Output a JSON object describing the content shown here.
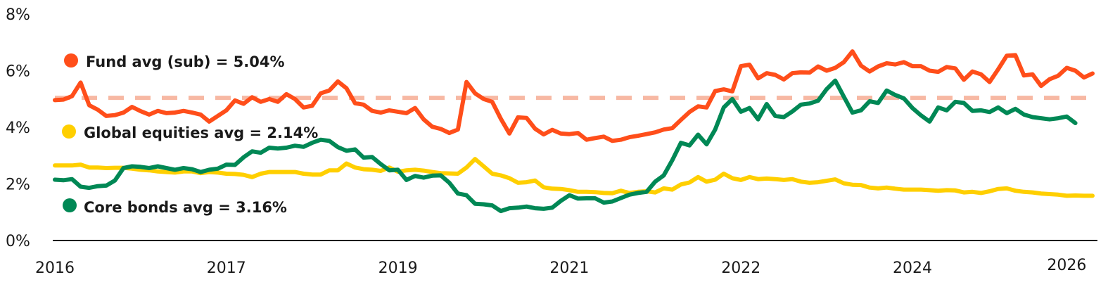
{
  "chart_data": {
    "type": "line",
    "title": "",
    "xlabel": "",
    "ylabel": "",
    "ylim": [
      0,
      8
    ],
    "y_ticks": [
      {
        "value": 0,
        "label": "0%"
      },
      {
        "value": 2,
        "label": "2%"
      },
      {
        "value": 4,
        "label": "4%"
      },
      {
        "value": 6,
        "label": "6%"
      },
      {
        "value": 8,
        "label": "8%"
      }
    ],
    "x_ticks": [
      {
        "index": 0,
        "label": "2016"
      },
      {
        "index": 20,
        "label": "2017"
      },
      {
        "index": 40,
        "label": "2019"
      },
      {
        "index": 60,
        "label": "2021"
      },
      {
        "index": 80,
        "label": "2022"
      },
      {
        "index": 100,
        "label": "2024"
      },
      {
        "index": 118,
        "label": "2026"
      }
    ],
    "reference_line": {
      "name": "Fund avg (sub)",
      "value": 5.04,
      "color": "#f7b8a3",
      "style": "dashed"
    },
    "series": [
      {
        "name": "Fund",
        "color": "#ff4e1a",
        "values": [
          4.96,
          4.98,
          5.1,
          5.58,
          4.78,
          4.62,
          4.4,
          4.43,
          4.52,
          4.72,
          4.57,
          4.45,
          4.58,
          4.5,
          4.52,
          4.58,
          4.52,
          4.45,
          4.2,
          4.4,
          4.6,
          4.95,
          4.83,
          5.06,
          4.9,
          5.0,
          4.9,
          5.17,
          5.0,
          4.7,
          4.76,
          5.2,
          5.3,
          5.62,
          5.38,
          4.85,
          4.8,
          4.58,
          4.52,
          4.6,
          4.55,
          4.5,
          4.68,
          4.28,
          4.02,
          3.94,
          3.8,
          3.92,
          5.6,
          5.2,
          5.0,
          4.9,
          4.3,
          3.78,
          4.35,
          4.33,
          3.95,
          3.75,
          3.91,
          3.78,
          3.76,
          3.8,
          3.56,
          3.62,
          3.67,
          3.52,
          3.56,
          3.65,
          3.7,
          3.76,
          3.82,
          3.92,
          3.97,
          4.26,
          4.54,
          4.74,
          4.7,
          5.28,
          5.34,
          5.27,
          6.16,
          6.21,
          5.73,
          5.91,
          5.85,
          5.69,
          5.91,
          5.94,
          5.93,
          6.15,
          6.0,
          6.1,
          6.3,
          6.68,
          6.18,
          5.97,
          6.15,
          6.26,
          6.22,
          6.3,
          6.16,
          6.16,
          6.0,
          5.96,
          6.13,
          6.08,
          5.68,
          5.97,
          5.87,
          5.6,
          6.05,
          6.53,
          6.55,
          5.83,
          5.87,
          5.46,
          5.7,
          5.82,
          6.1,
          6.0,
          5.76,
          5.9
        ]
      },
      {
        "name": "Global equities",
        "color": "#ffcf00",
        "values": [
          2.65,
          2.65,
          2.65,
          2.68,
          2.58,
          2.58,
          2.56,
          2.57,
          2.57,
          2.54,
          2.5,
          2.48,
          2.44,
          2.42,
          2.4,
          2.44,
          2.44,
          2.38,
          2.42,
          2.4,
          2.36,
          2.35,
          2.32,
          2.24,
          2.36,
          2.42,
          2.42,
          2.42,
          2.42,
          2.36,
          2.33,
          2.33,
          2.48,
          2.48,
          2.72,
          2.58,
          2.52,
          2.5,
          2.46,
          2.58,
          2.43,
          2.48,
          2.5,
          2.47,
          2.42,
          2.38,
          2.37,
          2.36,
          2.58,
          2.88,
          2.62,
          2.36,
          2.3,
          2.2,
          2.04,
          2.06,
          2.12,
          1.88,
          1.83,
          1.82,
          1.78,
          1.72,
          1.72,
          1.71,
          1.68,
          1.67,
          1.76,
          1.68,
          1.72,
          1.74,
          1.7,
          1.84,
          1.8,
          1.98,
          2.05,
          2.24,
          2.08,
          2.15,
          2.36,
          2.2,
          2.14,
          2.24,
          2.17,
          2.19,
          2.17,
          2.14,
          2.17,
          2.08,
          2.04,
          2.06,
          2.11,
          2.16,
          2.02,
          1.97,
          1.96,
          1.87,
          1.84,
          1.87,
          1.83,
          1.8,
          1.8,
          1.8,
          1.78,
          1.76,
          1.78,
          1.77,
          1.7,
          1.72,
          1.68,
          1.74,
          1.82,
          1.84,
          1.76,
          1.72,
          1.7,
          1.66,
          1.64,
          1.62,
          1.58,
          1.59,
          1.58,
          1.58
        ]
      },
      {
        "name": "Core bonds",
        "color": "#008855",
        "values": [
          2.15,
          2.13,
          2.17,
          1.9,
          1.86,
          1.92,
          1.94,
          2.12,
          2.56,
          2.62,
          2.6,
          2.56,
          2.62,
          2.56,
          2.5,
          2.56,
          2.52,
          2.42,
          2.5,
          2.54,
          2.68,
          2.67,
          2.94,
          3.15,
          3.1,
          3.28,
          3.25,
          3.28,
          3.35,
          3.31,
          3.45,
          3.56,
          3.52,
          3.3,
          3.17,
          3.22,
          2.93,
          2.95,
          2.7,
          2.48,
          2.5,
          2.14,
          2.28,
          2.22,
          2.29,
          2.3,
          2.04,
          1.66,
          1.6,
          1.3,
          1.28,
          1.24,
          1.04,
          1.14,
          1.16,
          1.2,
          1.14,
          1.12,
          1.16,
          1.4,
          1.6,
          1.48,
          1.49,
          1.49,
          1.34,
          1.38,
          1.5,
          1.62,
          1.68,
          1.72,
          2.08,
          2.3,
          2.84,
          3.45,
          3.36,
          3.74,
          3.4,
          3.92,
          4.7,
          5.0,
          4.55,
          4.68,
          4.28,
          4.82,
          4.4,
          4.36,
          4.56,
          4.8,
          4.84,
          4.94,
          5.35,
          5.65,
          5.08,
          4.52,
          4.6,
          4.92,
          4.86,
          5.3,
          5.14,
          5.02,
          4.68,
          4.42,
          4.2,
          4.7,
          4.6,
          4.9,
          4.86,
          4.58,
          4.6,
          4.54,
          4.7,
          4.5,
          4.65,
          4.45,
          4.36,
          4.32,
          4.28,
          4.32,
          4.38,
          4.15
        ]
      }
    ],
    "legend": [
      {
        "label": "Fund avg (sub) = 5.04%",
        "color": "#ff4e1a"
      },
      {
        "label": "Global equities avg = 2.14%",
        "color": "#ffcf00"
      },
      {
        "label": "Core bonds avg = 3.16%",
        "color": "#008855"
      }
    ]
  }
}
